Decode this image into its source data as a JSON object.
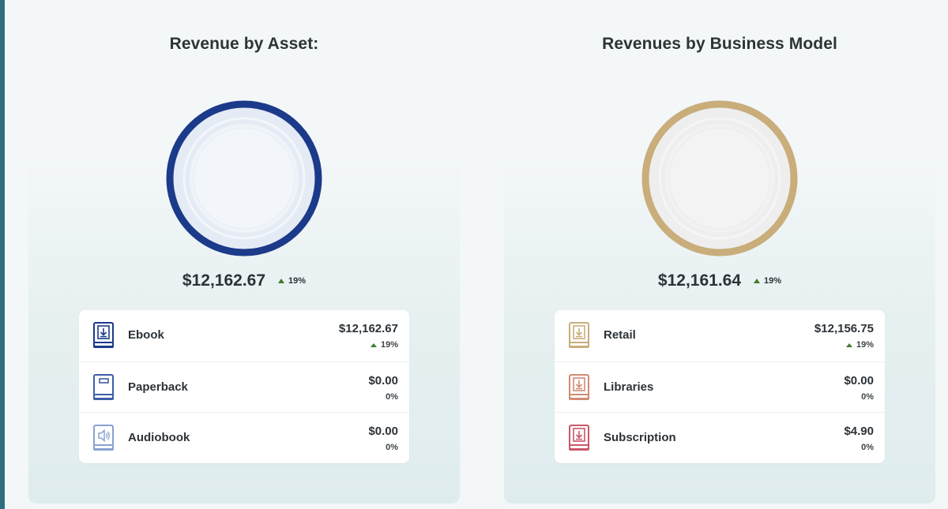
{
  "colors": {
    "rail": "#2f6e80",
    "asset_ring": "#1c3a8a",
    "model_ring": "#c9ad7a",
    "up_arrow": "#3f7d2a"
  },
  "asset_panel": {
    "title": "Revenue by Asset:",
    "total": "$12,162.67",
    "total_change": "19%",
    "items": [
      {
        "label": "Ebook",
        "amount": "$12,162.67",
        "change": "19%",
        "trend": "up",
        "icon": "ebook-download-icon",
        "icon_color": "#1c3a8a"
      },
      {
        "label": "Paperback",
        "amount": "$0.00",
        "change": "0%",
        "trend": "none",
        "icon": "paperback-book-icon",
        "icon_color": "#3d5ea8"
      },
      {
        "label": "Audiobook",
        "amount": "$0.00",
        "change": "0%",
        "trend": "none",
        "icon": "audiobook-speaker-icon",
        "icon_color": "#8aa2d2"
      }
    ]
  },
  "model_panel": {
    "title": "Revenues by Business Model",
    "total": "$12,161.64",
    "total_change": "19%",
    "items": [
      {
        "label": "Retail",
        "amount": "$12,156.75",
        "change": "19%",
        "trend": "up",
        "icon": "retail-download-icon",
        "icon_color": "#c9ad7a"
      },
      {
        "label": "Libraries",
        "amount": "$0.00",
        "change": "0%",
        "trend": "none",
        "icon": "libraries-download-icon",
        "icon_color": "#d08b72"
      },
      {
        "label": "Subscription",
        "amount": "$4.90",
        "change": "0%",
        "trend": "none",
        "icon": "subscription-download-icon",
        "icon_color": "#c9566a"
      }
    ]
  }
}
